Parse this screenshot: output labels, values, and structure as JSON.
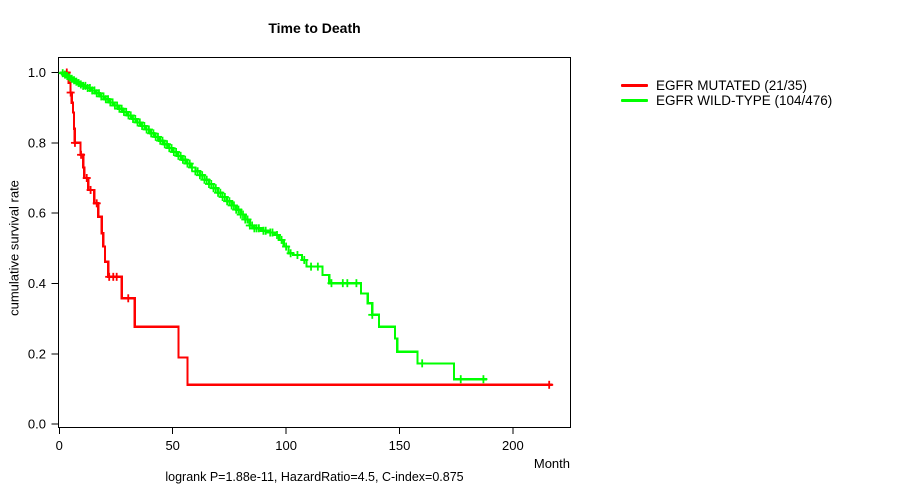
{
  "chart_data": {
    "type": "line",
    "subtype": "kaplan-meier-step",
    "title": "Time to Death",
    "xlabel": "Month",
    "ylabel": "cumulative survival rate",
    "footnote": "logrank P=1.88e-11, HazardRatio=4.5, C-index=0.875",
    "xlim": [
      0,
      225
    ],
    "ylim": [
      0,
      1.0
    ],
    "xticks": [
      0,
      50,
      100,
      150,
      200
    ],
    "yticks": [
      0.0,
      0.2,
      0.4,
      0.6,
      0.8,
      1.0
    ],
    "grid": false,
    "legend_position": "right-outside",
    "series": [
      {
        "name": "EGFR MUTATED (21/35)",
        "color": "#ff0000",
        "steps": [
          [
            0,
            1.0
          ],
          [
            4,
            0.971
          ],
          [
            5,
            0.943
          ],
          [
            5.5,
            0.914
          ],
          [
            6,
            0.886
          ],
          [
            6.5,
            0.84
          ],
          [
            6.8,
            0.8
          ],
          [
            9.4,
            0.766
          ],
          [
            10.6,
            0.73
          ],
          [
            11,
            0.7
          ],
          [
            12.8,
            0.666
          ],
          [
            15.4,
            0.628
          ],
          [
            17.2,
            0.59
          ],
          [
            18.7,
            0.543
          ],
          [
            19.4,
            0.505
          ],
          [
            20.1,
            0.462
          ],
          [
            21.6,
            0.419
          ],
          [
            27.5,
            0.358
          ],
          [
            33.3,
            0.277
          ],
          [
            52.5,
            0.19
          ],
          [
            56.5,
            0.112
          ]
        ],
        "end_month": 217.5,
        "censor_months": [
          3.3,
          5,
          6.9,
          9.6,
          12.1,
          13.8,
          16.5,
          22,
          23.8,
          25.3,
          30.4,
          216
        ]
      },
      {
        "name": "EGFR WILD-TYPE (104/476)",
        "color": "#00ff00",
        "steps": [
          [
            0,
            1.0
          ],
          [
            1,
            0.998
          ],
          [
            2,
            0.994
          ],
          [
            3,
            0.99
          ],
          [
            4,
            0.986
          ],
          [
            5,
            0.982
          ],
          [
            6,
            0.978
          ],
          [
            7,
            0.974
          ],
          [
            8,
            0.97
          ],
          [
            9,
            0.966
          ],
          [
            10,
            0.962
          ],
          [
            12,
            0.956
          ],
          [
            14,
            0.949
          ],
          [
            16,
            0.941
          ],
          [
            18,
            0.932
          ],
          [
            20,
            0.924
          ],
          [
            22,
            0.915
          ],
          [
            24,
            0.906
          ],
          [
            26,
            0.897
          ],
          [
            28,
            0.888
          ],
          [
            30,
            0.878
          ],
          [
            32,
            0.868
          ],
          [
            34,
            0.858
          ],
          [
            36,
            0.848
          ],
          [
            38,
            0.838
          ],
          [
            40,
            0.827
          ],
          [
            42,
            0.817
          ],
          [
            44,
            0.806
          ],
          [
            46,
            0.796
          ],
          [
            48,
            0.785
          ],
          [
            50,
            0.774
          ],
          [
            52,
            0.763
          ],
          [
            54,
            0.752
          ],
          [
            56,
            0.741
          ],
          [
            58,
            0.73
          ],
          [
            60,
            0.719
          ],
          [
            62,
            0.708
          ],
          [
            64,
            0.695
          ],
          [
            66,
            0.683
          ],
          [
            68,
            0.671
          ],
          [
            70,
            0.658
          ],
          [
            72,
            0.646
          ],
          [
            74,
            0.634
          ],
          [
            76,
            0.622
          ],
          [
            78,
            0.61
          ],
          [
            80,
            0.596
          ],
          [
            82,
            0.582
          ],
          [
            84,
            0.565
          ],
          [
            86,
            0.557
          ],
          [
            89,
            0.55
          ],
          [
            92,
            0.545
          ],
          [
            95,
            0.538
          ],
          [
            97,
            0.524
          ],
          [
            99,
            0.505
          ],
          [
            101,
            0.486
          ],
          [
            103,
            0.481
          ],
          [
            107,
            0.467
          ],
          [
            109,
            0.448
          ],
          [
            116,
            0.424
          ],
          [
            119,
            0.401
          ],
          [
            133,
            0.372
          ],
          [
            136,
            0.344
          ],
          [
            138,
            0.311
          ],
          [
            141,
            0.277
          ],
          [
            148,
            0.244
          ],
          [
            149,
            0.206
          ],
          [
            158,
            0.173
          ],
          [
            174,
            0.128
          ]
        ],
        "end_month": 188.5,
        "censor_months": [
          1.5,
          2.5,
          3.5,
          4.5,
          5.5,
          6.5,
          7.5,
          8.5,
          9.5,
          10.5,
          11.5,
          12.5,
          13.5,
          14.5,
          15.5,
          16.5,
          17.5,
          18.5,
          19.5,
          20.5,
          21.5,
          22.5,
          23.5,
          24.5,
          25.5,
          26.5,
          27.5,
          28.5,
          29.5,
          30.5,
          31.5,
          32.5,
          33.5,
          34.5,
          35.5,
          36.5,
          37.5,
          38.5,
          39.5,
          40.5,
          41.5,
          42.5,
          43.5,
          44.5,
          45.5,
          46.5,
          47.5,
          48.5,
          49.5,
          50.5,
          51.5,
          52.5,
          53.5,
          54.5,
          55.5,
          56.5,
          57.5,
          58.5,
          60,
          61,
          62,
          63,
          64,
          65,
          66,
          67,
          68,
          69,
          70,
          71,
          72,
          73,
          74,
          75,
          76,
          77,
          78,
          79,
          80,
          81,
          82,
          83,
          84,
          85,
          86,
          87,
          88,
          90,
          91,
          93,
          94,
          96,
          98,
          100,
          102,
          105,
          108,
          111,
          114,
          120,
          125,
          127,
          131,
          138,
          160,
          177,
          187
        ]
      }
    ]
  }
}
